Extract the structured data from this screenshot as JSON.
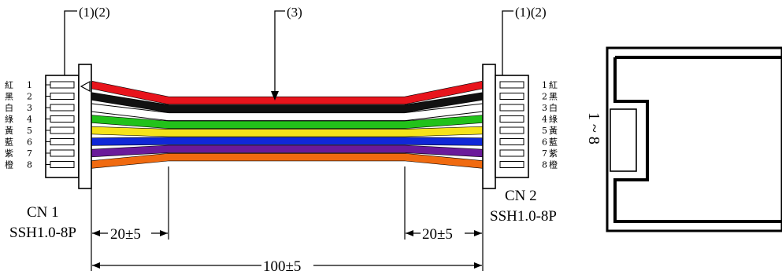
{
  "callouts": {
    "left": "(1)(2)",
    "center": "(3)",
    "right": "(1)(2)"
  },
  "connectors": {
    "cn1": {
      "name": "CN 1",
      "part": "SSH1.0-8P"
    },
    "cn2": {
      "name": "CN 2",
      "part": "SSH1.0-8P"
    }
  },
  "dimensions": {
    "left_tail": "20±5",
    "right_tail": "20±5",
    "overall": "100±5"
  },
  "wires": [
    {
      "pin": "1",
      "label": "紅",
      "color": "#e8141c"
    },
    {
      "pin": "2",
      "label": "黑",
      "color": "#111111"
    },
    {
      "pin": "3",
      "label": "白",
      "color": "#ffffff"
    },
    {
      "pin": "4",
      "label": "綠",
      "color": "#22c21a"
    },
    {
      "pin": "5",
      "label": "黃",
      "color": "#f5e31a"
    },
    {
      "pin": "6",
      "label": "藍",
      "color": "#1028d8"
    },
    {
      "pin": "7",
      "label": "紫",
      "color": "#6a1a9a"
    },
    {
      "pin": "8",
      "label": "橙",
      "color": "#f06a10"
    }
  ],
  "end_view": {
    "label": "1 ~ 8"
  }
}
